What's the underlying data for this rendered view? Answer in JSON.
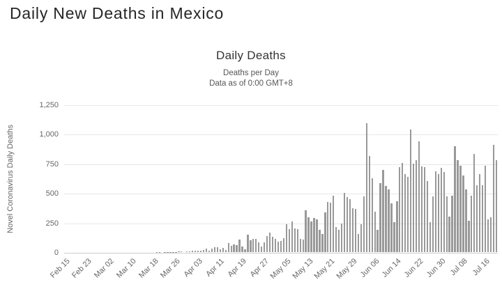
{
  "page": {
    "title": "Daily New Deaths in Mexico"
  },
  "chart": {
    "title": "Daily Deaths",
    "subtitle_line1": "Deaths per Day",
    "subtitle_line2": "Data as of 0:00 GMT+8",
    "y_axis_title": "Novel Coronavirus Daily Deaths"
  },
  "chart_data": {
    "type": "bar",
    "title": "Daily Deaths",
    "subtitle": "Deaths per Day — Data as of 0:00 GMT+8",
    "xlabel": "",
    "ylabel": "Novel Coronavirus Daily Deaths",
    "ylim": [
      0,
      1250
    ],
    "yticks": [
      0,
      250,
      500,
      750,
      1000,
      1250
    ],
    "grid": "horizontal",
    "legend": "none",
    "bar_color": "#999999",
    "gridline_color": "#e6e6e6",
    "axis_line_color": "#cccccc",
    "label_color": "#666666",
    "x_tick_every": 8,
    "x_tick_labels": [
      "Feb 15",
      "Feb 23",
      "Mar 02",
      "Mar 10",
      "Mar 18",
      "Mar 26",
      "Apr 03",
      "Apr 11",
      "Apr 19",
      "Apr 27",
      "May 05",
      "May 13",
      "May 21",
      "May 29",
      "Jun 06",
      "Jun 14",
      "Jun 22",
      "Jun 30",
      "Jul 08",
      "Jul 16"
    ],
    "dates": [
      "Feb 15",
      "Feb 16",
      "Feb 17",
      "Feb 18",
      "Feb 19",
      "Feb 20",
      "Feb 21",
      "Feb 22",
      "Feb 23",
      "Feb 24",
      "Feb 25",
      "Feb 26",
      "Feb 27",
      "Feb 28",
      "Feb 29",
      "Mar 01",
      "Mar 02",
      "Mar 03",
      "Mar 04",
      "Mar 05",
      "Mar 06",
      "Mar 07",
      "Mar 08",
      "Mar 09",
      "Mar 10",
      "Mar 11",
      "Mar 12",
      "Mar 13",
      "Mar 14",
      "Mar 15",
      "Mar 16",
      "Mar 17",
      "Mar 18",
      "Mar 19",
      "Mar 20",
      "Mar 21",
      "Mar 22",
      "Mar 23",
      "Mar 24",
      "Mar 25",
      "Mar 26",
      "Mar 27",
      "Mar 28",
      "Mar 29",
      "Mar 30",
      "Mar 31",
      "Apr 01",
      "Apr 02",
      "Apr 03",
      "Apr 04",
      "Apr 05",
      "Apr 06",
      "Apr 07",
      "Apr 08",
      "Apr 09",
      "Apr 10",
      "Apr 11",
      "Apr 12",
      "Apr 13",
      "Apr 14",
      "Apr 15",
      "Apr 16",
      "Apr 17",
      "Apr 18",
      "Apr 19",
      "Apr 20",
      "Apr 21",
      "Apr 22",
      "Apr 23",
      "Apr 24",
      "Apr 25",
      "Apr 26",
      "Apr 27",
      "Apr 28",
      "Apr 29",
      "Apr 30",
      "May 01",
      "May 02",
      "May 03",
      "May 04",
      "May 05",
      "May 06",
      "May 07",
      "May 08",
      "May 09",
      "May 10",
      "May 11",
      "May 12",
      "May 13",
      "May 14",
      "May 15",
      "May 16",
      "May 17",
      "May 18",
      "May 19",
      "May 20",
      "May 21",
      "May 22",
      "May 23",
      "May 24",
      "May 25",
      "May 26",
      "May 27",
      "May 28",
      "May 29",
      "May 30",
      "May 31",
      "Jun 01",
      "Jun 02",
      "Jun 03",
      "Jun 04",
      "Jun 05",
      "Jun 06",
      "Jun 07",
      "Jun 08",
      "Jun 09",
      "Jun 10",
      "Jun 11",
      "Jun 12",
      "Jun 13",
      "Jun 14",
      "Jun 15",
      "Jun 16",
      "Jun 17",
      "Jun 18",
      "Jun 19",
      "Jun 20",
      "Jun 21",
      "Jun 22",
      "Jun 23",
      "Jun 24",
      "Jun 25",
      "Jun 26",
      "Jun 27",
      "Jun 28",
      "Jun 29",
      "Jun 30",
      "Jul 01",
      "Jul 02",
      "Jul 03",
      "Jul 04",
      "Jul 05",
      "Jul 06",
      "Jul 07",
      "Jul 08",
      "Jul 09",
      "Jul 10",
      "Jul 11",
      "Jul 12",
      "Jul 13",
      "Jul 14",
      "Jul 15",
      "Jul 16",
      "Jul 17",
      "Jul 18",
      "Jul 19",
      "Jul 20"
    ],
    "values": [
      0,
      0,
      0,
      0,
      0,
      0,
      0,
      0,
      0,
      0,
      0,
      0,
      0,
      0,
      0,
      0,
      0,
      0,
      0,
      0,
      0,
      0,
      0,
      0,
      0,
      0,
      0,
      0,
      0,
      0,
      0,
      0,
      0,
      1,
      1,
      0,
      1,
      1,
      2,
      2,
      1,
      4,
      4,
      0,
      8,
      6,
      9,
      13,
      10,
      14,
      15,
      31,
      12,
      29,
      40,
      39,
      26,
      33,
      19,
      74,
      54,
      63,
      60,
      104,
      48,
      26,
      145,
      99,
      113,
      115,
      84,
      48,
      83,
      135,
      163,
      127,
      113,
      89,
      93,
      117,
      236,
      197,
      257,
      199,
      193,
      112,
      108,
      353,
      294,
      257,
      290,
      278,
      190,
      155,
      334,
      424,
      420,
      479,
      215,
      190,
      239,
      501,
      463,
      447,
      371,
      364,
      151,
      237,
      470,
      1092,
      816,
      625,
      341,
      188,
      584,
      698,
      560,
      531,
      412,
      254,
      432,
      718,
      757,
      659,
      639,
      1037,
      747,
      781,
      935,
      728,
      718,
      599,
      254,
      471,
      687,
      658,
      711,
      677,
      471,
      300,
      475,
      894,
      776,
      731,
      648,
      530,
      264,
      480,
      829,
      565,
      658,
      565,
      731,
      280,
      293,
      908,
      780
    ]
  }
}
